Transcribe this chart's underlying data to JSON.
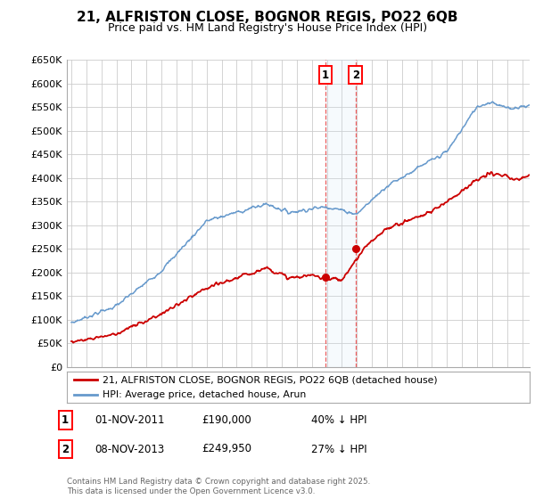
{
  "title": "21, ALFRISTON CLOSE, BOGNOR REGIS, PO22 6QB",
  "subtitle": "Price paid vs. HM Land Registry's House Price Index (HPI)",
  "ylabel_ticks": [
    "£0",
    "£50K",
    "£100K",
    "£150K",
    "£200K",
    "£250K",
    "£300K",
    "£350K",
    "£400K",
    "£450K",
    "£500K",
    "£550K",
    "£600K",
    "£650K"
  ],
  "ytick_vals": [
    0,
    50000,
    100000,
    150000,
    200000,
    250000,
    300000,
    350000,
    400000,
    450000,
    500000,
    550000,
    600000,
    650000
  ],
  "ylim": [
    0,
    650000
  ],
  "xlim_left": 1994.7,
  "xlim_right": 2025.5,
  "legend_line1": "21, ALFRISTON CLOSE, BOGNOR REGIS, PO22 6QB (detached house)",
  "legend_line2": "HPI: Average price, detached house, Arun",
  "annotation1_date": "01-NOV-2011",
  "annotation1_price": "£190,000",
  "annotation1_pct": "40% ↓ HPI",
  "annotation2_date": "08-NOV-2013",
  "annotation2_price": "£249,950",
  "annotation2_pct": "27% ↓ HPI",
  "footer": "Contains HM Land Registry data © Crown copyright and database right 2025.\nThis data is licensed under the Open Government Licence v3.0.",
  "line_color_red": "#cc0000",
  "line_color_blue": "#6699cc",
  "marker1_x": 2011.917,
  "marker1_y": 190000,
  "marker2_x": 2013.917,
  "marker2_y": 249950,
  "background_color": "#ffffff",
  "grid_color": "#cccccc",
  "title_fontsize": 11,
  "subtitle_fontsize": 9
}
